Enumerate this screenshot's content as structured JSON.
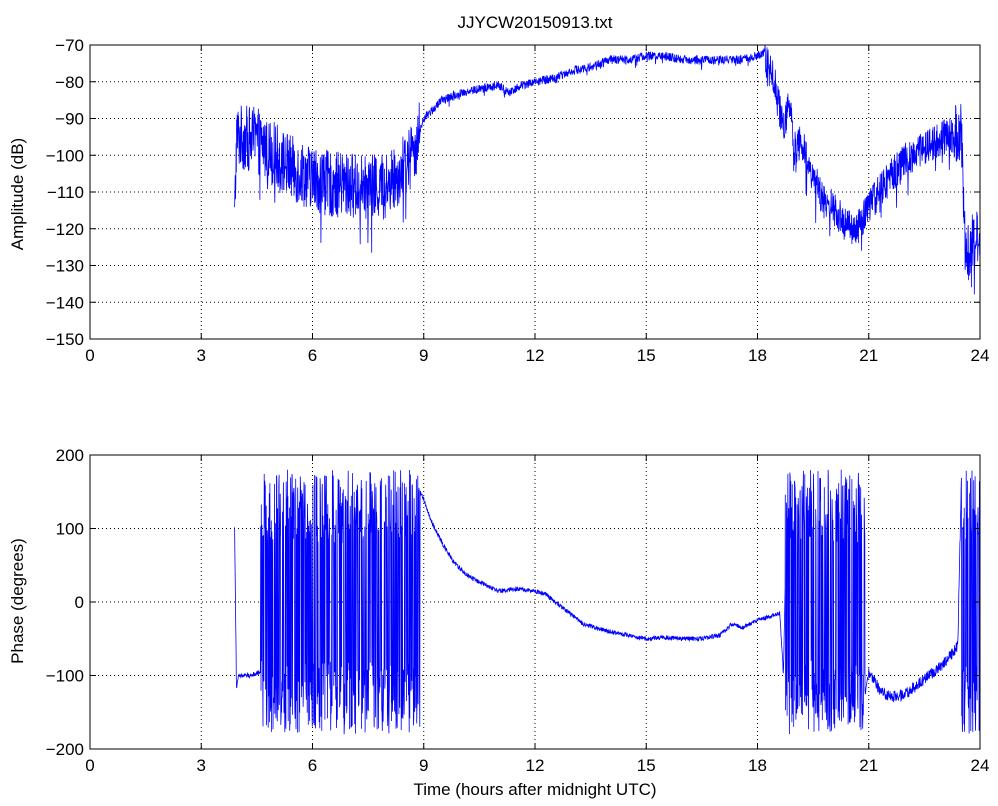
{
  "figure": {
    "title": "JJYCW20150913.txt",
    "line_color": "#0000ff"
  },
  "chart_data": [
    {
      "type": "line",
      "title": "JJYCW20150913.txt",
      "xlabel": "",
      "ylabel": "Amplitude (dB)",
      "xlim": [
        0,
        24
      ],
      "ylim": [
        -150,
        -70
      ],
      "xticks": [
        0,
        3,
        6,
        9,
        12,
        15,
        18,
        21,
        24
      ],
      "yticks": [
        -70,
        -80,
        -90,
        -100,
        -110,
        -120,
        -130,
        -140,
        -150
      ],
      "grid": true,
      "series": [
        {
          "x": [
            3.9,
            3.95,
            4.0,
            4.5,
            5.0,
            5.5,
            6.0,
            6.5,
            7.0,
            7.5,
            8.0,
            8.5,
            8.8,
            9.0,
            9.5,
            10.0,
            10.5,
            11.0,
            11.3,
            11.6,
            12.0,
            12.5,
            13.0,
            13.5,
            14.0,
            14.5,
            15.0,
            15.5,
            16.0,
            16.5,
            17.0,
            17.5,
            18.0,
            18.2,
            18.4,
            18.6,
            18.7,
            18.85,
            19.0,
            19.2,
            19.4,
            19.6,
            19.8,
            20.0,
            20.3,
            20.6,
            20.9,
            21.2,
            21.5,
            22.0,
            22.5,
            23.0,
            23.4,
            23.5,
            23.6,
            23.8,
            24.0
          ],
          "y": [
            -118,
            -95,
            -95,
            -96,
            -100,
            -104,
            -106,
            -108,
            -108,
            -109,
            -108,
            -103,
            -97,
            -90,
            -85,
            -83,
            -82,
            -81,
            -83,
            -81,
            -80,
            -79,
            -77,
            -76,
            -74,
            -74,
            -73,
            -73,
            -74,
            -74,
            -74,
            -74,
            -73,
            -72,
            -77,
            -88,
            -93,
            -85,
            -98,
            -96,
            -103,
            -108,
            -113,
            -114,
            -118,
            -121,
            -116,
            -111,
            -107,
            -101,
            -98,
            -95,
            -94,
            -94,
            -126,
            -124,
            -120
          ]
        }
      ]
    },
    {
      "type": "line",
      "title": "",
      "xlabel": "Time (hours after midnight UTC)",
      "ylabel": "Phase (degrees)",
      "xlim": [
        0,
        24
      ],
      "ylim": [
        -200,
        200
      ],
      "xticks": [
        0,
        3,
        6,
        9,
        12,
        15,
        18,
        21,
        24
      ],
      "yticks": [
        200,
        100,
        0,
        -100,
        -200
      ],
      "grid": true,
      "series": [
        {
          "x": [
            3.9,
            3.95,
            4.0,
            4.3,
            4.6,
            4.7,
            4.8,
            5.0,
            5.3,
            5.6,
            5.9,
            6.2,
            6.5,
            6.8,
            7.1,
            7.4,
            7.7,
            8.0,
            8.3,
            8.6,
            8.8,
            9.0,
            9.2,
            9.5,
            9.8,
            10.2,
            10.6,
            11.0,
            11.5,
            12.0,
            12.3,
            12.8,
            13.3,
            14.0,
            14.5,
            15.0,
            15.5,
            16.0,
            16.5,
            17.0,
            17.3,
            17.6,
            18.0,
            18.3,
            18.6,
            18.7,
            18.8,
            19.0,
            19.3,
            19.6,
            19.9,
            20.2,
            20.5,
            20.8,
            21.0,
            21.3,
            21.6,
            22.0,
            22.5,
            23.0,
            23.4,
            23.5,
            23.7,
            23.9,
            24.0
          ],
          "y": [
            100,
            -120,
            -100,
            -100,
            -95,
            -150,
            170,
            -170,
            175,
            -175,
            160,
            -160,
            170,
            -170,
            160,
            -165,
            170,
            -170,
            165,
            -175,
            160,
            140,
            110,
            80,
            55,
            35,
            25,
            15,
            18,
            15,
            10,
            -10,
            -30,
            -40,
            -45,
            -50,
            -48,
            -50,
            -50,
            -45,
            -30,
            -35,
            -25,
            -20,
            -15,
            -100,
            170,
            -160,
            170,
            -170,
            165,
            -165,
            170,
            -160,
            -95,
            -120,
            -130,
            -125,
            -105,
            -85,
            -60,
            170,
            -170,
            165,
            -100
          ]
        }
      ]
    }
  ]
}
